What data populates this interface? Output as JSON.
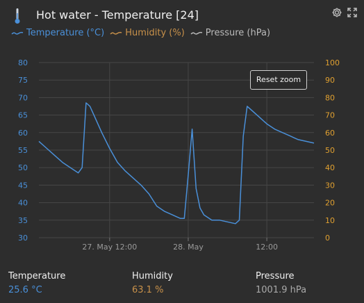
{
  "header": {
    "title": "Hot water - Temperature [24]",
    "icons": [
      "thermometer-icon",
      "gear-icon",
      "expand-icon"
    ]
  },
  "legend": {
    "items": [
      {
        "label": "Temperature (°C)",
        "color": "#4a90d9"
      },
      {
        "label": "Humidity (%)",
        "color": "#c8914a"
      },
      {
        "label": "Pressure (hPa)",
        "color": "#bbbbbb"
      }
    ]
  },
  "reset_zoom_label": "Reset zoom",
  "chart_data": {
    "type": "line",
    "series": [
      {
        "name": "Temperature (°C)",
        "color": "#4a90d9",
        "axis": "left",
        "x_day": [
          0.0,
          0.1,
          0.2,
          0.3,
          0.4,
          0.5,
          0.55,
          0.6,
          0.65,
          0.7,
          0.8,
          0.9,
          1.0,
          1.1,
          1.2,
          1.3,
          1.4,
          1.5,
          1.6,
          1.7,
          1.75,
          1.8,
          1.85,
          1.9,
          1.95,
          2.0,
          2.05,
          2.1,
          2.2,
          2.3,
          2.4,
          2.5,
          2.55,
          2.6,
          2.65,
          2.7,
          2.8,
          2.9,
          3.0,
          3.1,
          3.15,
          3.2,
          3.25,
          3.3,
          3.4,
          3.5
        ],
        "values": [
          57.5,
          55.5,
          53.5,
          51.5,
          50.0,
          48.5,
          50.0,
          68.5,
          67.5,
          65.0,
          60.0,
          55.5,
          51.5,
          49.0,
          47.0,
          45.0,
          42.5,
          39.0,
          37.5,
          36.5,
          36.0,
          35.5,
          35.5,
          48.0,
          61.0,
          44.0,
          38.5,
          36.5,
          35.0,
          35.0,
          34.5,
          34.0,
          35.0,
          59.0,
          67.5,
          66.5,
          64.5,
          62.5,
          61.0,
          60.0,
          59.5,
          59.0,
          58.5,
          58.0,
          57.5,
          57.0
        ]
      },
      {
        "name": "Humidity (%)",
        "color": "#c8914a",
        "axis": "right",
        "values": []
      },
      {
        "name": "Pressure (hPa)",
        "color": "#bbbbbb",
        "axis": "right",
        "values": []
      }
    ],
    "y_left_ticks": [
      "80",
      "75",
      "70",
      "65",
      "60",
      "55",
      "50",
      "45",
      "40",
      "35",
      "30"
    ],
    "y_left_range": [
      30,
      80
    ],
    "y_right_ticks": [
      "100",
      "90",
      "80",
      "70",
      "60",
      "50",
      "40",
      "30",
      "20",
      "10",
      "0"
    ],
    "y_right_range": [
      0,
      100
    ],
    "x_ticks": [
      {
        "label": "27. May 12:00",
        "day": 0.9
      },
      {
        "label": "28. May",
        "day": 1.9
      },
      {
        "label": "12:00",
        "day": 2.9
      }
    ],
    "x_range_days": [
      0.0,
      3.5
    ],
    "grid": true
  },
  "stats": [
    {
      "label": "Temperature",
      "value": "25.6 °C",
      "color": "#4a90d9"
    },
    {
      "label": "Humidity",
      "value": "63.1 %",
      "color": "#c8914a"
    },
    {
      "label": "Pressure",
      "value": "1001.9 hPa",
      "color": "#aaaaaa"
    }
  ]
}
